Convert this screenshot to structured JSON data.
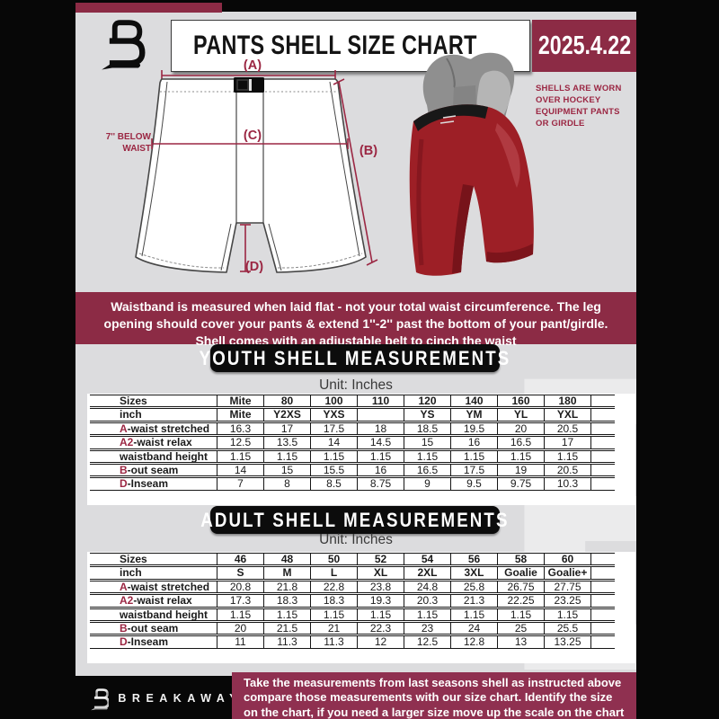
{
  "header": {
    "title": "PANTS SHELL SIZE CHART",
    "date": "2025.4.22"
  },
  "diagram": {
    "label_a": "(A)",
    "label_b": "(B)",
    "label_c": "(C)",
    "label_d": "(D)",
    "waist_note_lines": [
      "7'' BELOW",
      "WAIST"
    ],
    "photo_note_lines": [
      "SHELLS ARE WORN",
      "OVER HOCKEY",
      "EQUIPMENT PANTS",
      "OR GIRDLE"
    ]
  },
  "notice": {
    "lines": [
      "Waistband is measured when laid flat - not your total waist circumference. The leg",
      "opening should cover your pants & extend 1''-2'' past the bottom of your pant/girdle.",
      "Shell comes with an adjustable belt to cinch the waist"
    ]
  },
  "youth": {
    "banner": "YOUTH SHELL MEASUREMENTS",
    "unit": "Unit: Inches"
  },
  "adult": {
    "banner": "ADULT SHELL MEASUREMENTS",
    "unit": "Unit: Inches"
  },
  "youth_table": {
    "rows": [
      {
        "header": true,
        "label": {
          "prefix": "",
          "text": "Sizes"
        },
        "values": [
          "Mite",
          "80",
          "100",
          "110",
          "120",
          "140",
          "160",
          "180"
        ]
      },
      {
        "header": true,
        "label": {
          "prefix": "",
          "text": "inch"
        },
        "values": [
          "Mite",
          "Y2XS",
          "YXS",
          "",
          "YS",
          "YM",
          "YL",
          "YXL"
        ]
      },
      {
        "header": false,
        "label": {
          "prefix": "A",
          "text": "-waist stretched"
        },
        "values": [
          "16.3",
          "17",
          "17.5",
          "18",
          "18.5",
          "19.5",
          "20",
          "20.5"
        ]
      },
      {
        "header": false,
        "label": {
          "prefix": "A2",
          "text": "-waist relax"
        },
        "values": [
          "12.5",
          "13.5",
          "14",
          "14.5",
          "15",
          "16",
          "16.5",
          "17"
        ]
      },
      {
        "header": false,
        "label": {
          "prefix": "",
          "text": "waistband height"
        },
        "values": [
          "1.15",
          "1.15",
          "1.15",
          "1.15",
          "1.15",
          "1.15",
          "1.15",
          "1.15"
        ]
      },
      {
        "header": false,
        "label": {
          "prefix": "B",
          "text": "-out seam"
        },
        "values": [
          "14",
          "15",
          "15.5",
          "16",
          "16.5",
          "17.5",
          "19",
          "20.5"
        ]
      },
      {
        "header": false,
        "label": {
          "prefix": "D",
          "text": "-Inseam"
        },
        "values": [
          "7",
          "8",
          "8.5",
          "8.75",
          "9",
          "9.5",
          "9.75",
          "10.3"
        ]
      }
    ]
  },
  "adult_table": {
    "rows": [
      {
        "header": true,
        "label": {
          "prefix": "",
          "text": "Sizes"
        },
        "values": [
          "46",
          "48",
          "50",
          "52",
          "54",
          "56",
          "58",
          "60"
        ]
      },
      {
        "header": true,
        "label": {
          "prefix": "",
          "text": "inch"
        },
        "values": [
          "S",
          "M",
          "L",
          "XL",
          "2XL",
          "3XL",
          "Goalie",
          "Goalie+"
        ]
      },
      {
        "header": false,
        "label": {
          "prefix": "A",
          "text": "-waist stretched"
        },
        "values": [
          "20.8",
          "21.8",
          "22.8",
          "23.8",
          "24.8",
          "25.8",
          "26.75",
          "27.75"
        ]
      },
      {
        "header": false,
        "label": {
          "prefix": "A2",
          "text": "-waist relax"
        },
        "values": [
          "17.3",
          "18.3",
          "18.3",
          "19.3",
          "20.3",
          "21.3",
          "22.25",
          "23.25"
        ]
      },
      {
        "header": false,
        "label": {
          "prefix": "",
          "text": "waistband height"
        },
        "values": [
          "1.15",
          "1.15",
          "1.15",
          "1.15",
          "1.15",
          "1.15",
          "1.15",
          "1.15"
        ]
      },
      {
        "header": false,
        "label": {
          "prefix": "B",
          "text": "-out seam"
        },
        "values": [
          "20",
          "21.5",
          "21",
          "22.3",
          "23",
          "24",
          "25",
          "25.5"
        ]
      },
      {
        "header": false,
        "label": {
          "prefix": "D",
          "text": "-Inseam"
        },
        "values": [
          "11",
          "11.3",
          "11.3",
          "12",
          "12.5",
          "12.8",
          "13",
          "13.25"
        ]
      }
    ]
  },
  "footer": {
    "brand": "BREAKAWAY",
    "lines": [
      "Take the measurements from last seasons shell as instructed above",
      "compare those measurements  with our size chart. Identify the size",
      "on the chart, if you need a larger size move up the scale on the chart"
    ]
  },
  "watermark_letter": "B"
}
